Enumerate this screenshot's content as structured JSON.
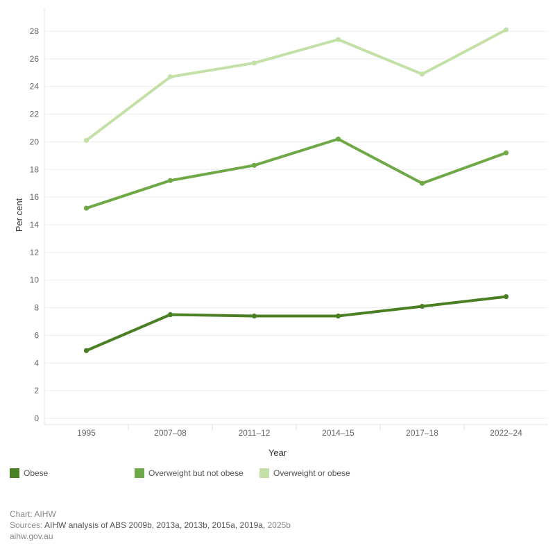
{
  "chart_data": {
    "type": "line",
    "categories": [
      "1995",
      "2007–08",
      "2011–12",
      "2014–15",
      "2017–18",
      "2022–24"
    ],
    "xlabel": "Year",
    "ylabel": "Per cent",
    "ylim": [
      0,
      29
    ],
    "yticks": [
      0,
      2,
      4,
      6,
      8,
      10,
      12,
      14,
      16,
      18,
      20,
      22,
      24,
      26,
      28
    ],
    "grid": true,
    "legend_position": "bottom",
    "series": [
      {
        "name": "Obese",
        "color": "#4a7f23",
        "values": [
          4.9,
          7.5,
          7.4,
          7.4,
          8.1,
          8.8
        ]
      },
      {
        "name": "Overweight but not obese",
        "color": "#6fa846",
        "values": [
          15.2,
          17.2,
          18.3,
          20.2,
          17.0,
          19.2
        ]
      },
      {
        "name": "Overweight or obese",
        "color": "#c3e0a6",
        "values": [
          20.1,
          24.7,
          25.7,
          27.4,
          24.9,
          28.1
        ]
      }
    ]
  },
  "footer": {
    "credit": "Chart: AIHW",
    "sources_label": "Sources:",
    "sources_main": "AIHW analysis of ABS 2009b, 2013a, 2013b, 2015a, 2019a,",
    "sources_tail": "2025b",
    "site": "aihw.gov.au"
  }
}
